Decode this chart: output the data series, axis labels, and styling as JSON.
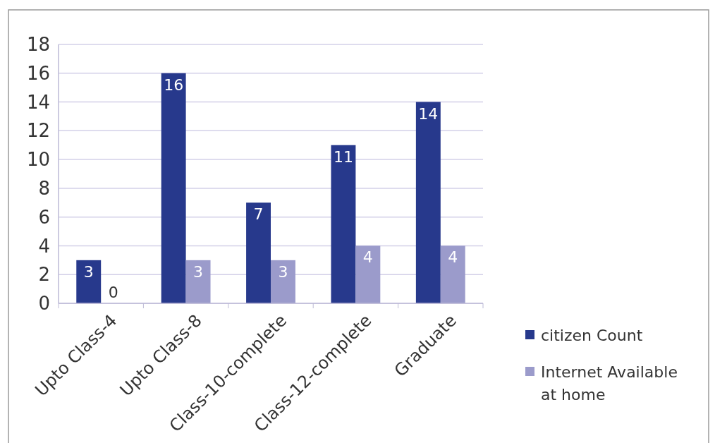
{
  "chart_data": {
    "type": "bar",
    "categories": [
      "Upto Class-4",
      "Upto Class-8",
      "Class-10-complete",
      "Class-12-complete",
      "Graduate"
    ],
    "series": [
      {
        "name": "citizen Count",
        "color": "#27398c",
        "values": [
          3,
          16,
          7,
          11,
          14
        ]
      },
      {
        "name": "Internet Available at home",
        "color": "#9b9bcb",
        "values": [
          0,
          3,
          3,
          4,
          4
        ]
      }
    ],
    "ylim": [
      0,
      18
    ],
    "yticks": [
      0,
      2,
      4,
      6,
      8,
      10,
      12,
      14,
      16,
      18
    ],
    "grid": "y",
    "legend": "right",
    "data_labels": true
  }
}
